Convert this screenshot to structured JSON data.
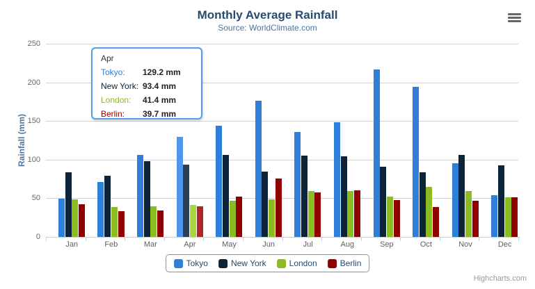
{
  "chart": {
    "title": "Monthly Average Rainfall",
    "subtitle": "Source: WorldClimate.com",
    "y_axis": {
      "title": "Rainfall (mm)"
    },
    "credit": "Highcharts.com"
  },
  "chart_data": {
    "type": "bar",
    "title": "Monthly Average Rainfall",
    "subtitle": "Source: WorldClimate.com",
    "categories": [
      "Jan",
      "Feb",
      "Mar",
      "Apr",
      "May",
      "Jun",
      "Jul",
      "Aug",
      "Sep",
      "Oct",
      "Nov",
      "Dec"
    ],
    "series": [
      {
        "name": "Tokyo",
        "color": "#2f7ed8",
        "hover_color": "#4f97ee",
        "values": [
          49.9,
          71.5,
          106.4,
          129.2,
          144.0,
          176.0,
          135.6,
          148.5,
          216.4,
          194.1,
          95.6,
          54.4
        ]
      },
      {
        "name": "New York",
        "color": "#0d233a",
        "hover_color": "#2a4055",
        "values": [
          83.6,
          78.8,
          98.5,
          93.4,
          106.0,
          84.5,
          105.0,
          104.3,
          91.2,
          83.5,
          106.6,
          92.3
        ]
      },
      {
        "name": "London",
        "color": "#8bbc21",
        "hover_color": "#a6d73c",
        "values": [
          48.9,
          38.8,
          39.3,
          41.4,
          47.0,
          48.3,
          59.0,
          59.6,
          52.4,
          65.2,
          59.3,
          51.2
        ]
      },
      {
        "name": "Berlin",
        "color": "#910000",
        "hover_color": "#b02525",
        "values": [
          42.4,
          33.2,
          34.5,
          39.7,
          52.6,
          75.5,
          57.4,
          60.4,
          47.6,
          39.1,
          46.8,
          51.1
        ]
      }
    ],
    "xlabel": "",
    "ylabel": "Rainfall (mm)",
    "ylim": [
      0,
      250
    ],
    "y_ticks": [
      0,
      50,
      100,
      150,
      200,
      250
    ],
    "grid": true,
    "legend_position": "bottom",
    "hovered_category": "Apr",
    "hovered_category_index": 3
  },
  "tooltip": {
    "header": "Apr",
    "border_color": "#559ae8",
    "rows": [
      {
        "label": "Tokyo:",
        "value": "129.2 mm",
        "color": "#2f7ed8"
      },
      {
        "label": "New York:",
        "value": "93.4 mm",
        "color": "#0d233a"
      },
      {
        "label": "London:",
        "value": "41.4 mm",
        "color": "#8bbc21"
      },
      {
        "label": "Berlin:",
        "value": "39.7 mm",
        "color": "#910000"
      }
    ]
  },
  "legend": {
    "items": [
      {
        "label": "Tokyo",
        "color": "#2f7ed8"
      },
      {
        "label": "New York",
        "color": "#0d233a"
      },
      {
        "label": "London",
        "color": "#8bbc21"
      },
      {
        "label": "Berlin",
        "color": "#910000"
      }
    ]
  }
}
